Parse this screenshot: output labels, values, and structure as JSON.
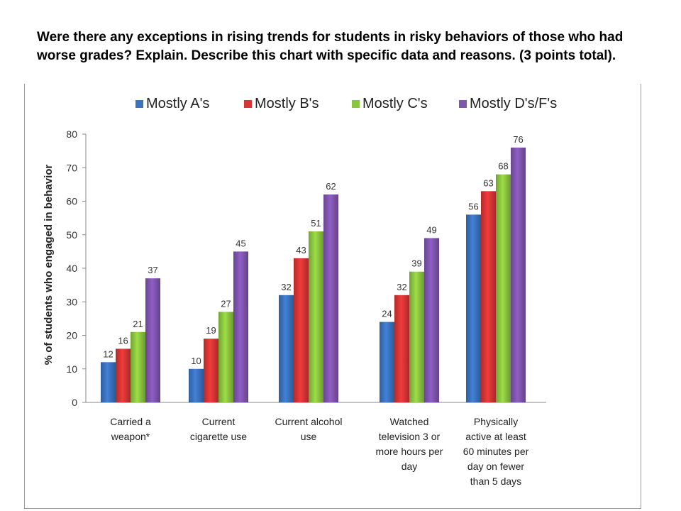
{
  "question": "Were there any exceptions in rising trends for students in risky behaviors of those who had worse grades?  Explain.  Describe this chart with specific data and reasons. (3 points total).",
  "chart_data": {
    "type": "bar",
    "ylabel": "% of students who engaged in behavior",
    "ylim": [
      0,
      80
    ],
    "yticks": [
      0,
      10,
      20,
      30,
      40,
      50,
      60,
      70,
      80
    ],
    "categories": [
      [
        "Carried a",
        "weapon*"
      ],
      [
        "Current",
        "cigarette use"
      ],
      [
        "Current alcohol",
        "use"
      ],
      [
        "Watched",
        "television 3 or",
        "more hours per",
        "day"
      ],
      [
        "Physically",
        "active at least",
        "60 minutes per",
        "day on fewer",
        "than 5 days"
      ]
    ],
    "series": [
      {
        "name": "Mostly A's",
        "color": "#3a73c0",
        "values": [
          12,
          10,
          32,
          24,
          56
        ]
      },
      {
        "name": "Mostly B's",
        "color": "#d83535",
        "values": [
          16,
          19,
          43,
          32,
          63
        ]
      },
      {
        "name": "Mostly C's",
        "color": "#8cc63f",
        "values": [
          21,
          27,
          51,
          39,
          68
        ]
      },
      {
        "name": "Mostly D's/F's",
        "color": "#8055b0",
        "values": [
          37,
          45,
          62,
          49,
          76
        ]
      }
    ],
    "legend_position": "top",
    "grid": false
  }
}
